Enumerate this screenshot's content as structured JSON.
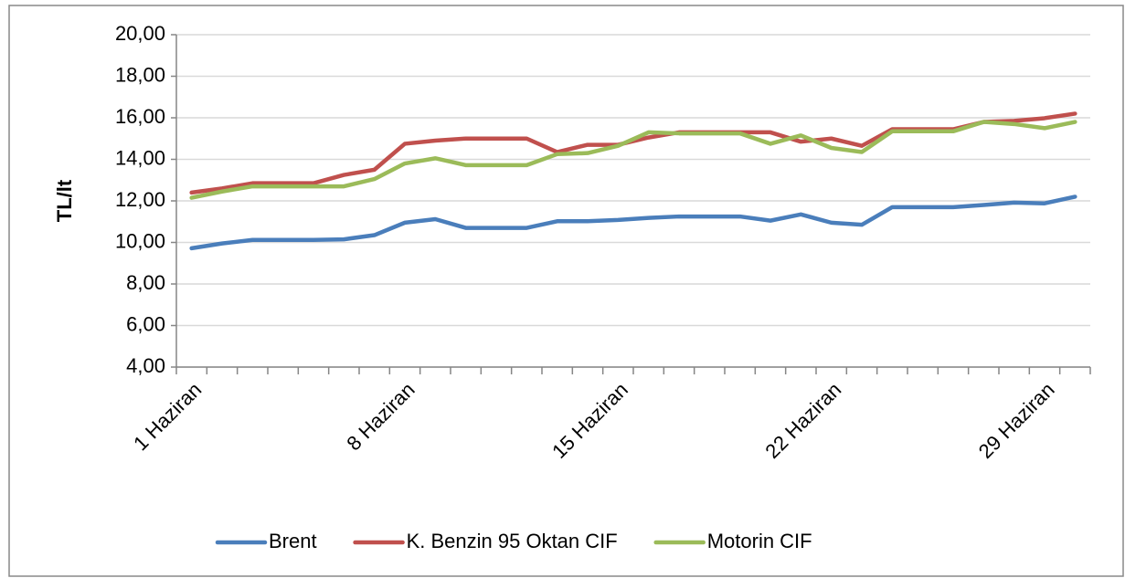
{
  "chart_data": {
    "type": "line",
    "ylabel": "TL/lt",
    "categories": [
      "1 Haziran",
      null,
      null,
      null,
      null,
      null,
      null,
      "8 Haziran",
      null,
      null,
      null,
      null,
      null,
      null,
      "15 Haziran",
      null,
      null,
      null,
      null,
      null,
      null,
      "22 Haziran",
      null,
      null,
      null,
      null,
      null,
      null,
      "29 Haziran",
      null
    ],
    "series": [
      {
        "name": "Brent",
        "color": "#4a7ebb",
        "values": [
          9.72,
          9.95,
          10.12,
          10.12,
          10.12,
          10.15,
          10.35,
          10.95,
          11.12,
          10.7,
          10.7,
          10.7,
          11.02,
          11.02,
          11.08,
          11.18,
          11.25,
          11.25,
          11.25,
          11.05,
          11.35,
          10.95,
          10.85,
          11.7,
          11.7,
          11.7,
          11.8,
          11.92,
          11.88,
          12.2
        ]
      },
      {
        "name": "K. Benzin 95 Oktan CIF",
        "color": "#c0504d",
        "values": [
          12.4,
          12.6,
          12.85,
          12.85,
          12.85,
          13.25,
          13.5,
          14.75,
          14.9,
          15.0,
          15.0,
          15.0,
          14.35,
          14.7,
          14.7,
          15.05,
          15.3,
          15.3,
          15.3,
          15.3,
          14.85,
          15.0,
          14.65,
          15.45,
          15.45,
          15.45,
          15.8,
          15.85,
          15.98,
          16.2
        ]
      },
      {
        "name": "Motorin CIF",
        "color": "#9bbb59",
        "values": [
          12.15,
          12.45,
          12.7,
          12.7,
          12.7,
          12.7,
          13.05,
          13.8,
          14.05,
          13.72,
          13.72,
          13.72,
          14.25,
          14.3,
          14.65,
          15.3,
          15.25,
          15.25,
          15.25,
          14.75,
          15.15,
          14.55,
          14.35,
          15.35,
          15.35,
          15.35,
          15.8,
          15.7,
          15.5,
          15.8
        ]
      }
    ],
    "ylim": [
      4,
      20
    ],
    "yticks": [
      {
        "value": 4,
        "label": "4,00"
      },
      {
        "value": 6,
        "label": "6,00"
      },
      {
        "value": 8,
        "label": "8,00"
      },
      {
        "value": 10,
        "label": "10,00"
      },
      {
        "value": 12,
        "label": "12,00"
      },
      {
        "value": 14,
        "label": "14,00"
      },
      {
        "value": 16,
        "label": "16,00"
      },
      {
        "value": 18,
        "label": "18,00"
      },
      {
        "value": 20,
        "label": "20,00"
      }
    ],
    "grid": true,
    "legend": "bottom"
  }
}
